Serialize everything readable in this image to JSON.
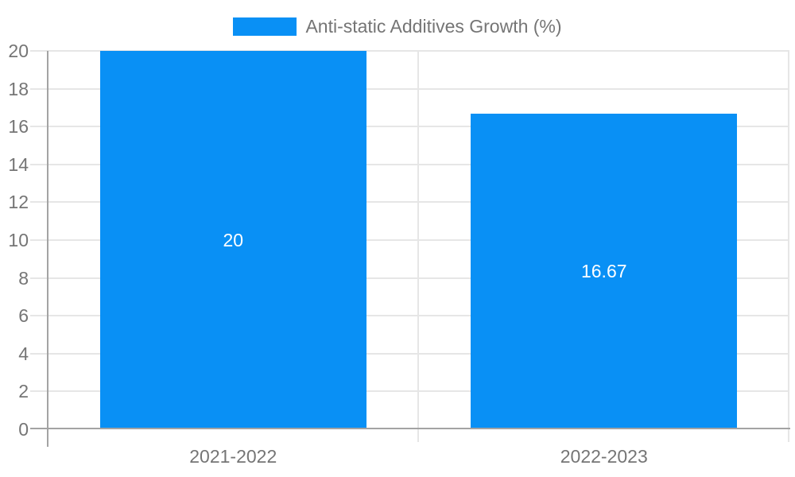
{
  "chart_data": {
    "type": "bar",
    "legend_label": "Anti-static Additives Growth (%)",
    "legend_position": "top",
    "categories": [
      "2021-2022",
      "2022-2023"
    ],
    "series": [
      {
        "name": "Anti-static Additives Growth (%)",
        "color": "#0990f5",
        "values": [
          20,
          16.67
        ]
      }
    ],
    "bar_value_labels": [
      "20",
      "16.67"
    ],
    "ylim": [
      0,
      20
    ],
    "ytick_step": 2,
    "yticks": [
      0,
      2,
      4,
      6,
      8,
      10,
      12,
      14,
      16,
      18,
      20
    ],
    "grid": true,
    "xlabel": "",
    "ylabel": ""
  },
  "colors": {
    "bar": "#0990f5",
    "axis_text": "#757575",
    "legend_text": "#757575",
    "bar_value_text": "#ffffff",
    "gridline": "#e6e6e6",
    "axis_line": "#a3a3a3",
    "background": "#ffffff"
  }
}
